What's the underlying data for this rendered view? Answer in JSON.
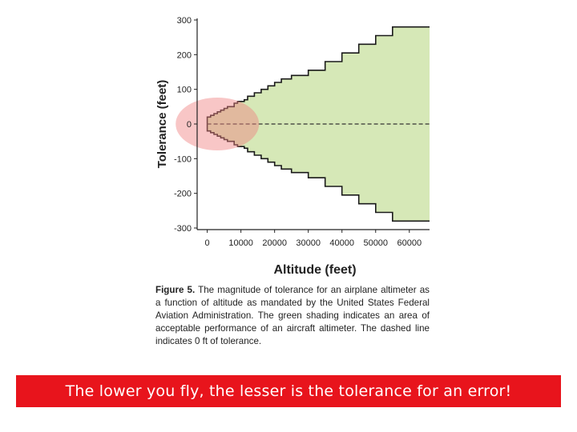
{
  "chart_data": {
    "type": "area",
    "xlabel": "Altitude (feet)",
    "ylabel": "Tolerance (feet)",
    "xlim": [
      -3000,
      66000
    ],
    "ylim": [
      -300,
      300
    ],
    "x_ticks": [
      0,
      10000,
      20000,
      30000,
      40000,
      50000,
      60000
    ],
    "y_ticks": [
      300,
      200,
      100,
      0,
      -100,
      -200,
      -300
    ],
    "series": [
      {
        "upper_step": [
          [
            0,
            20
          ],
          [
            1000,
            25
          ],
          [
            2000,
            30
          ],
          [
            3000,
            35
          ],
          [
            4000,
            40
          ],
          [
            5000,
            45
          ],
          [
            6000,
            50
          ],
          [
            8000,
            60
          ],
          [
            9000,
            65
          ],
          [
            11000,
            70
          ],
          [
            12000,
            80
          ],
          [
            14000,
            90
          ],
          [
            16000,
            100
          ],
          [
            18000,
            110
          ],
          [
            20000,
            120
          ],
          [
            22000,
            130
          ],
          [
            25000,
            140
          ],
          [
            30000,
            155
          ],
          [
            35000,
            180
          ],
          [
            40000,
            205
          ],
          [
            45000,
            230
          ],
          [
            50000,
            255
          ],
          [
            55000,
            280
          ],
          [
            66000,
            280
          ]
        ],
        "color": "#d6e8b7"
      }
    ],
    "reference_line": {
      "y": 0,
      "style": "dashed"
    },
    "highlight": {
      "shape": "ellipse",
      "center": [
        3000,
        0
      ],
      "color": "#f08080"
    },
    "caption": {
      "label": "Figure 5.",
      "text": "The magnitude of tolerance for an airplane altimeter as a function of altitude as mandated by the United States Federal Aviation Administration. The green shading indicates an area of acceptable performance of an aircraft altimeter. The dashed line indicates 0 ft of tolerance."
    }
  },
  "banner": {
    "text": "The lower you fly, the lesser is the tolerance for an error!",
    "color": "#e8141c"
  }
}
